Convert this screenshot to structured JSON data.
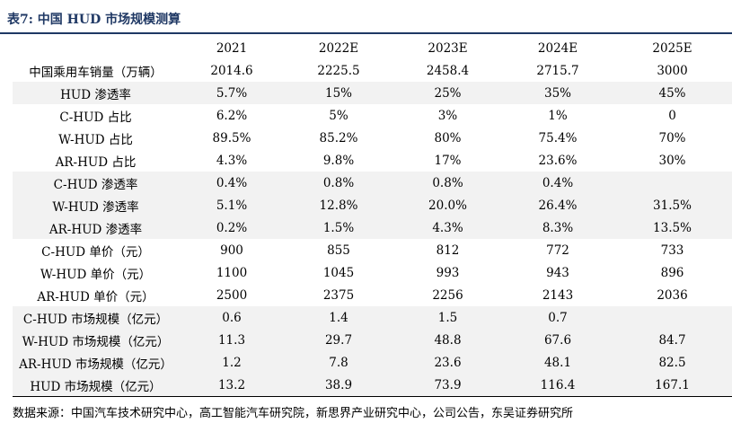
{
  "title": "表7:  中国 HUD 市场规模测算",
  "table": {
    "headers": [
      "",
      "2021",
      "2022E",
      "2023E",
      "2024E",
      "2025E"
    ],
    "rows": [
      {
        "label": "中国乘用车销量（万辆）",
        "values": [
          "2014.6",
          "2225.5",
          "2458.4",
          "2715.7",
          "3000"
        ],
        "shaded": false
      },
      {
        "label": "HUD 渗透率",
        "values": [
          "5.7%",
          "15%",
          "25%",
          "35%",
          "45%"
        ],
        "shaded": true
      },
      {
        "label": "C-HUD  占比",
        "values": [
          "6.2%",
          "5%",
          "3%",
          "1%",
          "0"
        ],
        "shaded": false
      },
      {
        "label": "W-HUD  占比",
        "values": [
          "89.5%",
          "85.2%",
          "80%",
          "75.4%",
          "70%"
        ],
        "shaded": false
      },
      {
        "label": "AR-HUD  占比",
        "values": [
          "4.3%",
          "9.8%",
          "17%",
          "23.6%",
          "30%"
        ],
        "shaded": false
      },
      {
        "label": "C-HUD  渗透率",
        "values": [
          "0.4%",
          "0.8%",
          "0.8%",
          "0.4%",
          ""
        ],
        "shaded": true
      },
      {
        "label": "W-HUD  渗透率",
        "values": [
          "5.1%",
          "12.8%",
          "20.0%",
          "26.4%",
          "31.5%"
        ],
        "shaded": true
      },
      {
        "label": "AR-HUD  渗透率",
        "values": [
          "0.2%",
          "1.5%",
          "4.3%",
          "8.3%",
          "13.5%"
        ],
        "shaded": true
      },
      {
        "label": "C-HUD  单价（元）",
        "values": [
          "900",
          "855",
          "812",
          "772",
          "733"
        ],
        "shaded": false
      },
      {
        "label": "W-HUD  单价（元）",
        "values": [
          "1100",
          "1045",
          "993",
          "943",
          "896"
        ],
        "shaded": false
      },
      {
        "label": "AR-HUD  单价（元）",
        "values": [
          "2500",
          "2375",
          "2256",
          "2143",
          "2036"
        ],
        "shaded": false
      },
      {
        "label": "C-HUD  市场规模（亿元）",
        "values": [
          "0.6",
          "1.4",
          "1.5",
          "0.7",
          ""
        ],
        "shaded": true
      },
      {
        "label": "W-HUD  市场规模（亿元）",
        "values": [
          "11.3",
          "29.7",
          "48.8",
          "67.6",
          "84.7"
        ],
        "shaded": true
      },
      {
        "label": "AR-HUD  市场规模（亿元）",
        "values": [
          "1.2",
          "7.8",
          "23.6",
          "48.1",
          "82.5"
        ],
        "shaded": true
      },
      {
        "label": "HUD  市场规模（亿元）",
        "values": [
          "13.2",
          "38.9",
          "73.9",
          "116.4",
          "167.1"
        ],
        "shaded": true
      }
    ]
  },
  "source": "数据来源：中国汽车技术研究中心，高工智能汽车研究院，新思界产业研究中心，公司公告，东吴证券研究所",
  "colors": {
    "title": "#1f3864",
    "shade": "#f2f2f2",
    "rule": "#1f3864"
  }
}
